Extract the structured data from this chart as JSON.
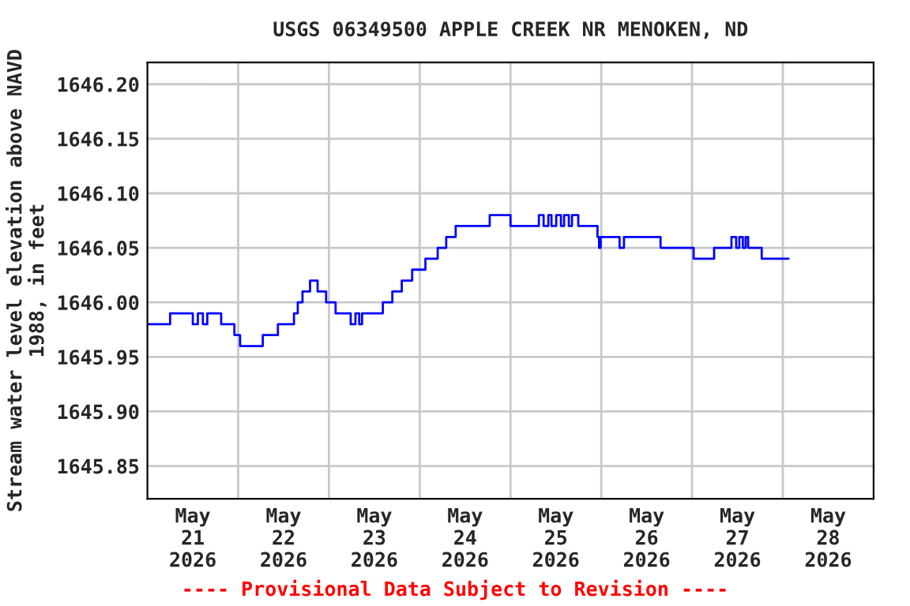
{
  "chart_data": {
    "type": "step",
    "title": "USGS 06349500 APPLE CREEK NR MENOKEN, ND",
    "ylabel": "Stream water level elevation above NAVD\n1988, in feet",
    "annotations": [
      "---- Provisional Data Subject to Revision ----"
    ],
    "series": [
      {
        "color": "#0000ff",
        "x": [
          "2026-05-21T00:00",
          "2026-05-21T06:00",
          "2026-05-21T12:00",
          "2026-05-21T13:20",
          "2026-05-21T14:40",
          "2026-05-21T15:50",
          "2026-05-21T19:30",
          "2026-05-21T23:00",
          "2026-05-22T00:30",
          "2026-05-22T06:30",
          "2026-05-22T10:30",
          "2026-05-22T14:45",
          "2026-05-22T15:45",
          "2026-05-22T17:00",
          "2026-05-22T19:00",
          "2026-05-22T21:00",
          "2026-05-22T23:15",
          "2026-05-23T01:45",
          "2026-05-23T05:45",
          "2026-05-23T07:00",
          "2026-05-23T08:00",
          "2026-05-23T08:45",
          "2026-05-23T14:15",
          "2026-05-23T16:45",
          "2026-05-23T19:15",
          "2026-05-23T22:00",
          "2026-05-24T01:30",
          "2026-05-24T04:45",
          "2026-05-24T07:00",
          "2026-05-24T09:30",
          "2026-05-24T18:30",
          "2026-05-25T00:00",
          "2026-05-25T07:30",
          "2026-05-25T08:45",
          "2026-05-25T10:00",
          "2026-05-25T10:50",
          "2026-05-25T12:05",
          "2026-05-25T13:20",
          "2026-05-25T14:10",
          "2026-05-25T15:25",
          "2026-05-25T16:15",
          "2026-05-25T17:55",
          "2026-05-25T23:00",
          "2026-05-25T23:25",
          "2026-05-25T23:50",
          "2026-05-26T04:50",
          "2026-05-26T06:00",
          "2026-05-26T15:40",
          "2026-05-27T00:25",
          "2026-05-27T05:50",
          "2026-05-27T10:25",
          "2026-05-27T11:40",
          "2026-05-27T12:30",
          "2026-05-27T13:25",
          "2026-05-27T14:10",
          "2026-05-27T14:50",
          "2026-05-27T18:25",
          "2026-05-28T01:30"
        ],
        "values": [
          1645.98,
          1645.99,
          1645.98,
          1645.99,
          1645.98,
          1645.99,
          1645.98,
          1645.97,
          1645.96,
          1645.97,
          1645.98,
          1645.99,
          1646.0,
          1646.01,
          1646.02,
          1646.01,
          1646.0,
          1645.99,
          1645.98,
          1645.99,
          1645.98,
          1645.99,
          1646.0,
          1646.01,
          1646.02,
          1646.03,
          1646.04,
          1646.05,
          1646.06,
          1646.07,
          1646.08,
          1646.07,
          1646.08,
          1646.07,
          1646.08,
          1646.07,
          1646.08,
          1646.07,
          1646.08,
          1646.07,
          1646.08,
          1646.07,
          1646.06,
          1646.05,
          1646.06,
          1646.05,
          1646.06,
          1646.05,
          1646.04,
          1646.05,
          1646.06,
          1646.05,
          1646.06,
          1646.05,
          1646.06,
          1646.05,
          1646.04,
          1646.04
        ]
      }
    ],
    "xlim": [
      "2026-05-21T00:00",
      "2026-05-29T00:00"
    ],
    "xticks": [
      {
        "value": "2026-05-21T12:00",
        "label": "May\n21\n2026"
      },
      {
        "value": "2026-05-22T00:00",
        "label": null
      },
      {
        "value": "2026-05-22T12:00",
        "label": "May\n22\n2026"
      },
      {
        "value": "2026-05-23T00:00",
        "label": null
      },
      {
        "value": "2026-05-23T12:00",
        "label": "May\n23\n2026"
      },
      {
        "value": "2026-05-24T00:00",
        "label": null
      },
      {
        "value": "2026-05-24T12:00",
        "label": "May\n24\n2026"
      },
      {
        "value": "2026-05-25T00:00",
        "label": null
      },
      {
        "value": "2026-05-25T12:00",
        "label": "May\n25\n2026"
      },
      {
        "value": "2026-05-26T00:00",
        "label": null
      },
      {
        "value": "2026-05-26T12:00",
        "label": "May\n26\n2026"
      },
      {
        "value": "2026-05-27T00:00",
        "label": null
      },
      {
        "value": "2026-05-27T12:00",
        "label": "May\n27\n2026"
      },
      {
        "value": "2026-05-28T00:00",
        "label": null
      },
      {
        "value": "2026-05-28T12:00",
        "label": "May\n28\n2026"
      }
    ],
    "ylim": [
      1645.82,
      1646.22
    ],
    "yticks": [
      {
        "value": 1645.85,
        "label": "1645.85"
      },
      {
        "value": 1645.9,
        "label": "1645.90"
      },
      {
        "value": 1645.95,
        "label": "1645.95"
      },
      {
        "value": 1646.0,
        "label": "1646.00"
      },
      {
        "value": 1646.05,
        "label": "1646.05"
      },
      {
        "value": 1646.1,
        "label": "1646.10"
      },
      {
        "value": 1646.15,
        "label": "1646.15"
      },
      {
        "value": 1646.2,
        "label": "1646.20"
      }
    ],
    "grid": true,
    "legend": false,
    "line_style": "solid",
    "marker": "none"
  }
}
